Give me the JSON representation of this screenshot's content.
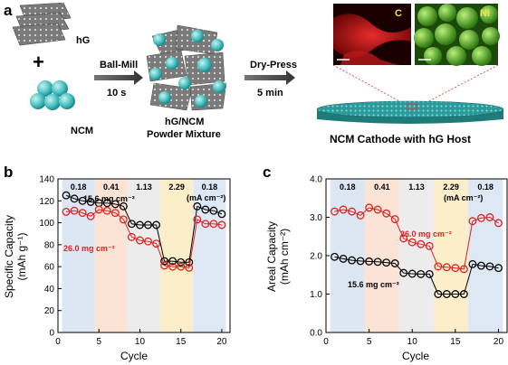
{
  "panel_a": {
    "label": "a",
    "hg_label": "hG",
    "plus": "+",
    "ncm_label": "NCM",
    "ballmill_label": "Ball-Mill",
    "ballmill_time": "10 s",
    "mixture_line1": "hG/NCM",
    "mixture_line2": "Powder Mixture",
    "drypress_label": "Dry-Press",
    "drypress_time": "5 min",
    "map_c_label": "C",
    "map_ni_label": "Ni",
    "cathode_caption": "NCM Cathode with hG Host",
    "colors": {
      "ncm_sphere": "#4fc4c4",
      "map_c": "#d62020",
      "map_ni": "#5cb82c"
    }
  },
  "panel_b": {
    "label": "b",
    "rate_labels": [
      "0.18",
      "0.41",
      "1.13",
      "2.29",
      "0.18"
    ],
    "rate_unit": "(mA cm⁻²)",
    "xlabel": "Cycle",
    "ylabel_line1": "Specific Capacity",
    "ylabel_line2": "(mAh g⁻¹)",
    "annot_black": "15.6 mg cm⁻²",
    "annot_red": "26.0 mg cm⁻²",
    "x_ticks": [
      "0",
      "5",
      "10",
      "15",
      "20"
    ],
    "y_ticks": [
      "0",
      "20",
      "40",
      "60",
      "80",
      "100",
      "120",
      "140"
    ]
  },
  "panel_c": {
    "label": "c",
    "rate_labels": [
      "0.18",
      "0.41",
      "1.13",
      "2.29",
      "0.18"
    ],
    "rate_unit": "(mA cm⁻²)",
    "xlabel": "Cycle",
    "ylabel_line1": "Areal Capacity",
    "ylabel_line2": "(mAh cm⁻²)",
    "annot_black": "15.6 mg cm⁻²",
    "annot_red": "26.0 mg cm⁻²",
    "x_ticks": [
      "0",
      "5",
      "10",
      "15",
      "20"
    ],
    "y_ticks": [
      "0.0",
      "1.0",
      "2.0",
      "3.0",
      "4.0"
    ]
  },
  "chart_data": [
    {
      "type": "scatter",
      "title": "",
      "xlabel": "Cycle",
      "ylabel": "Specific Capacity (mAh g⁻¹)",
      "xlim": [
        0,
        21
      ],
      "ylim": [
        0,
        140
      ],
      "rate_bands": [
        {
          "from": 0.5,
          "to": 4.5,
          "color": "#dde6f3"
        },
        {
          "from": 4.5,
          "to": 8.5,
          "color": "#fbe4d6"
        },
        {
          "from": 8.5,
          "to": 12.5,
          "color": "#ececec"
        },
        {
          "from": 12.5,
          "to": 16.5,
          "color": "#fbeec9"
        },
        {
          "from": 16.5,
          "to": 20.5,
          "color": "#dde8f4"
        }
      ],
      "x": [
        1,
        2,
        3,
        4,
        5,
        6,
        7,
        8,
        9,
        10,
        11,
        12,
        13,
        14,
        15,
        16,
        17,
        18,
        19,
        20
      ],
      "series": [
        {
          "name": "15.6 mg cm⁻²",
          "color": "#000000",
          "values": [
            125,
            122,
            120,
            119,
            118,
            118,
            117,
            115,
            99,
            98,
            98,
            98,
            65,
            65,
            64,
            64,
            115,
            112,
            111,
            108
          ]
        },
        {
          "name": "26.0 mg cm⁻²",
          "color": "#e02020",
          "values": [
            110,
            111,
            109,
            106,
            112,
            111,
            109,
            103,
            87,
            84,
            83,
            81,
            61,
            60,
            60,
            59,
            103,
            99,
            99,
            98
          ]
        }
      ]
    },
    {
      "type": "scatter",
      "title": "",
      "xlabel": "Cycle",
      "ylabel": "Areal Capacity (mAh cm⁻²)",
      "xlim": [
        0,
        21
      ],
      "ylim": [
        0,
        4
      ],
      "rate_bands": [
        {
          "from": 0.5,
          "to": 4.5,
          "color": "#dde6f3"
        },
        {
          "from": 4.5,
          "to": 8.5,
          "color": "#fbe4d6"
        },
        {
          "from": 8.5,
          "to": 12.5,
          "color": "#ececec"
        },
        {
          "from": 12.5,
          "to": 16.5,
          "color": "#fbeec9"
        },
        {
          "from": 16.5,
          "to": 20.5,
          "color": "#dde8f4"
        }
      ],
      "x": [
        1,
        2,
        3,
        4,
        5,
        6,
        7,
        8,
        9,
        10,
        11,
        12,
        13,
        14,
        15,
        16,
        17,
        18,
        19,
        20
      ],
      "series": [
        {
          "name": "15.6 mg cm⁻²",
          "color": "#000000",
          "values": [
            1.97,
            1.92,
            1.88,
            1.86,
            1.85,
            1.84,
            1.82,
            1.8,
            1.55,
            1.53,
            1.52,
            1.52,
            1.0,
            1.0,
            1.0,
            1.0,
            1.78,
            1.74,
            1.72,
            1.68
          ]
        },
        {
          "name": "26.0 mg cm⁻²",
          "color": "#e02020",
          "values": [
            3.15,
            3.2,
            3.15,
            3.05,
            3.25,
            3.2,
            3.1,
            2.95,
            2.45,
            2.35,
            2.3,
            2.25,
            1.72,
            1.7,
            1.68,
            1.65,
            2.9,
            2.98,
            3.0,
            2.85
          ]
        }
      ]
    }
  ]
}
